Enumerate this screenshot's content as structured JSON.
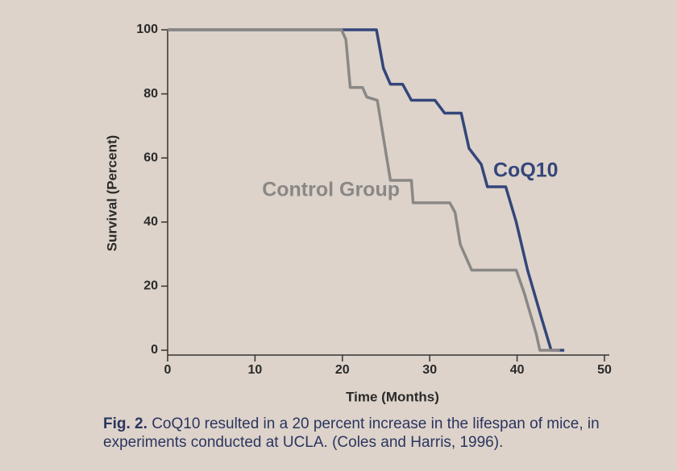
{
  "chart_data": {
    "type": "line",
    "xlabel": "Time (Months)",
    "ylabel": "Survival (Percent)",
    "xlim": [
      0,
      50
    ],
    "xticks": [
      0,
      10,
      20,
      30,
      40,
      50
    ],
    "ylim": [
      0,
      100
    ],
    "yticks": [
      0,
      20,
      40,
      60,
      80,
      100
    ],
    "series": [
      {
        "name": "CoQ10",
        "color": "#34467a",
        "x": [
          0,
          23.9,
          24.7,
          25.5,
          26.9,
          27.9,
          30.6,
          31.7,
          33.6,
          34.5,
          35.9,
          36.6,
          38.7,
          39.9,
          41.2,
          42.8,
          43.9,
          45.4
        ],
        "values": [
          100,
          100,
          88,
          83,
          83,
          78,
          78,
          74,
          74,
          63,
          58,
          51,
          51,
          40,
          25,
          10,
          0,
          0
        ]
      },
      {
        "name": "Control Group",
        "color": "#8a8886",
        "x": [
          0,
          19.9,
          20.4,
          20.9,
          22.3,
          22.8,
          24.0,
          25.5,
          27.9,
          28.1,
          32.3,
          32.9,
          33.5,
          34.8,
          39.9,
          40.8,
          42.2,
          42.6,
          44.9
        ],
        "values": [
          100,
          100,
          97,
          82,
          82,
          79,
          78,
          53,
          53,
          46,
          46,
          43,
          33,
          25,
          25,
          18,
          5,
          0,
          0
        ]
      }
    ],
    "caption": {
      "label": "Fig. 2.",
      "text": "CoQ10 resulted in a 20 percent increase in the lifespan of mice, in experiments conducted at UCLA. (Coles and Harris, 1996)."
    }
  }
}
